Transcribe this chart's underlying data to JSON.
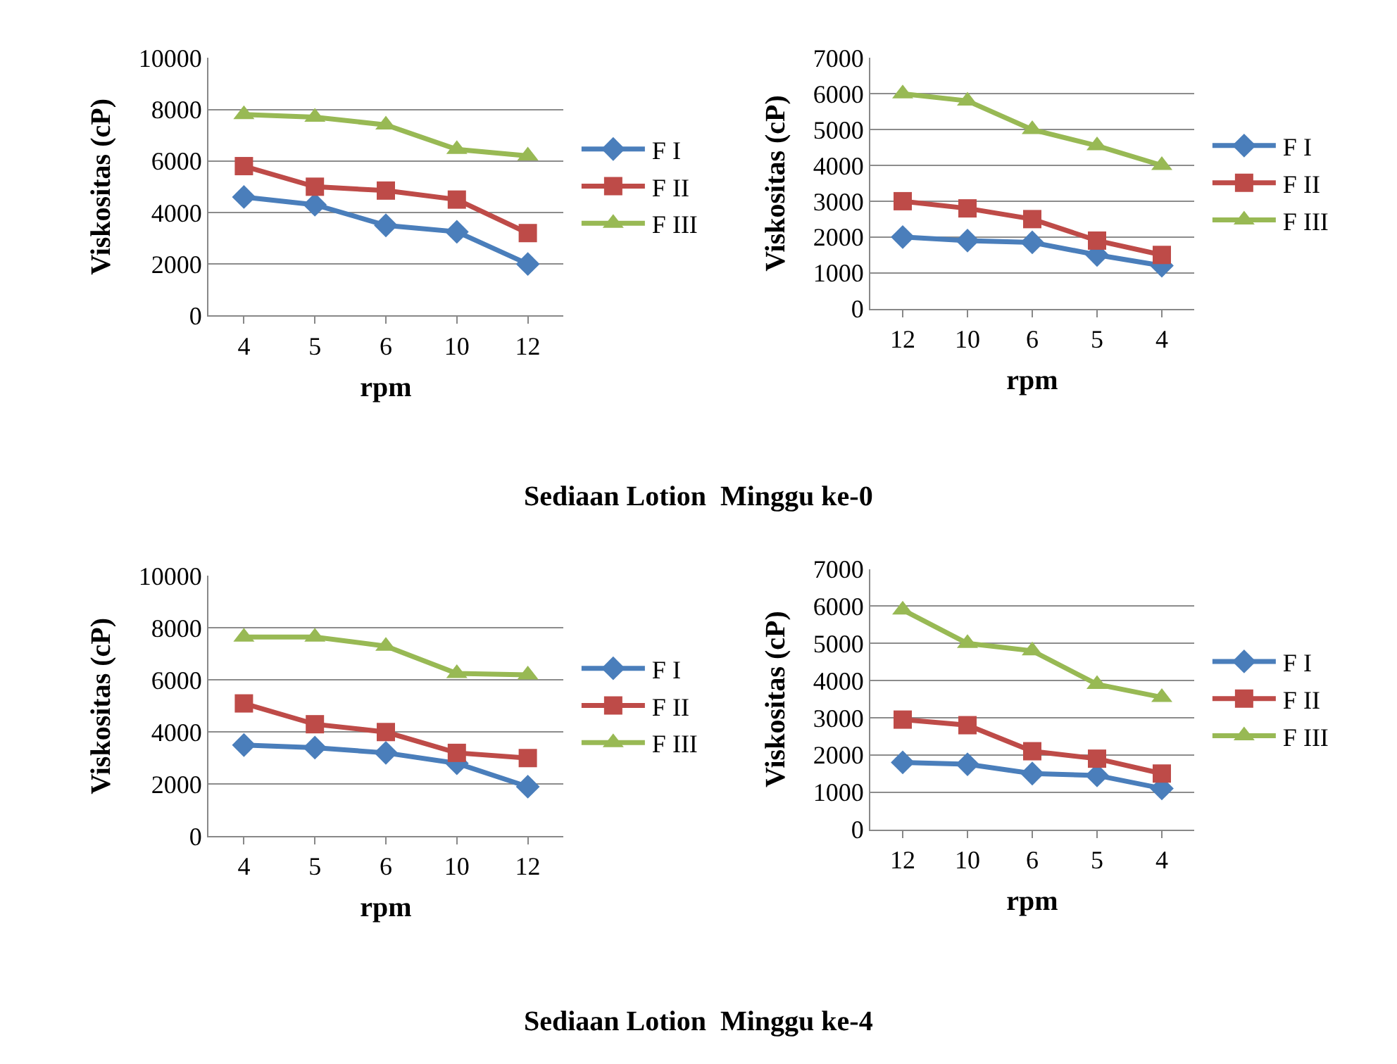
{
  "chart_data": [
    {
      "type": "line",
      "xlabel": "rpm",
      "ylabel": "Viskositas (cP)",
      "categories": [
        "4",
        "5",
        "6",
        "10",
        "12"
      ],
      "ylim": [
        0,
        10000
      ],
      "yticks": [
        0,
        2000,
        4000,
        6000,
        8000,
        10000
      ],
      "grid": "y",
      "legend": "right",
      "line_style": "solid",
      "annotations": [
        "Sediaan Lotion  Minggu ke-0"
      ],
      "series": [
        {
          "name": "F I",
          "color": "#4a7ebb",
          "marker": "diamond",
          "values": [
            4600,
            4300,
            3500,
            3250,
            2000
          ]
        },
        {
          "name": "F II",
          "color": "#be4b48",
          "marker": "square",
          "values": [
            5800,
            5000,
            4850,
            4500,
            3200
          ]
        },
        {
          "name": "F III",
          "color": "#98b954",
          "marker": "triangle",
          "values": [
            7800,
            7700,
            7400,
            6450,
            6200
          ]
        }
      ]
    },
    {
      "type": "line",
      "xlabel": "rpm",
      "ylabel": "Viskositas (cP)",
      "categories": [
        "12",
        "10",
        "6",
        "5",
        "4"
      ],
      "ylim": [
        0,
        7000
      ],
      "yticks": [
        0,
        1000,
        2000,
        3000,
        4000,
        5000,
        6000,
        7000
      ],
      "grid": "y",
      "legend": "right",
      "line_style": "solid",
      "series": [
        {
          "name": "F I",
          "color": "#4a7ebb",
          "marker": "diamond",
          "values": [
            2000,
            1900,
            1850,
            1500,
            1200
          ]
        },
        {
          "name": "F II",
          "color": "#be4b48",
          "marker": "square",
          "values": [
            3000,
            2800,
            2500,
            1900,
            1500
          ]
        },
        {
          "name": "F III",
          "color": "#98b954",
          "marker": "triangle",
          "values": [
            6000,
            5800,
            5000,
            4550,
            4000
          ]
        }
      ]
    },
    {
      "type": "line",
      "xlabel": "rpm",
      "ylabel": "Viskositas (cP)",
      "categories": [
        "4",
        "5",
        "6",
        "10",
        "12"
      ],
      "ylim": [
        0,
        10000
      ],
      "yticks": [
        0,
        2000,
        4000,
        6000,
        8000,
        10000
      ],
      "grid": "y",
      "legend": "right",
      "line_style": "solid",
      "annotations": [
        "Sediaan Lotion  Minggu ke-4"
      ],
      "series": [
        {
          "name": "F I",
          "color": "#4a7ebb",
          "marker": "diamond",
          "values": [
            3500,
            3400,
            3200,
            2800,
            1900
          ]
        },
        {
          "name": "F II",
          "color": "#be4b48",
          "marker": "square",
          "values": [
            5100,
            4300,
            4000,
            3200,
            3000
          ]
        },
        {
          "name": "F III",
          "color": "#98b954",
          "marker": "triangle",
          "values": [
            7650,
            7650,
            7300,
            6250,
            6200
          ]
        }
      ]
    },
    {
      "type": "line",
      "xlabel": "rpm",
      "ylabel": "Viskositas (cP)",
      "categories": [
        "12",
        "10",
        "6",
        "5",
        "4"
      ],
      "ylim": [
        0,
        7000
      ],
      "yticks": [
        0,
        1000,
        2000,
        3000,
        4000,
        5000,
        6000,
        7000
      ],
      "grid": "y",
      "legend": "right",
      "line_style": "solid",
      "series": [
        {
          "name": "F I",
          "color": "#4a7ebb",
          "marker": "diamond",
          "values": [
            1800,
            1750,
            1500,
            1450,
            1100
          ]
        },
        {
          "name": "F II",
          "color": "#be4b48",
          "marker": "square",
          "values": [
            2950,
            2800,
            2100,
            1900,
            1500
          ]
        },
        {
          "name": "F III",
          "color": "#98b954",
          "marker": "triangle",
          "values": [
            5900,
            5000,
            4800,
            3900,
            3550
          ]
        }
      ]
    }
  ]
}
